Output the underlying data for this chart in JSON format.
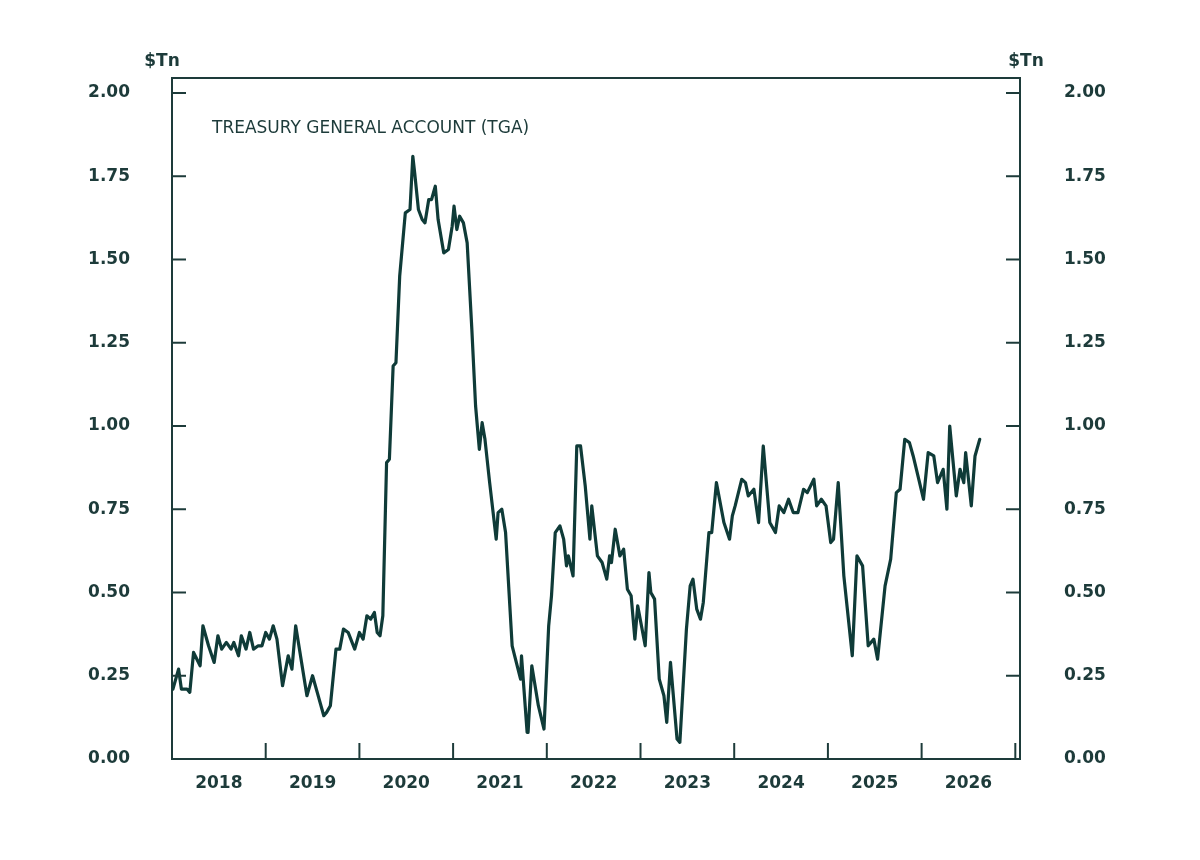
{
  "chart_data": {
    "type": "line",
    "title": "TREASURY GENERAL ACCOUNT (TGA)",
    "ylabel": "$Tn",
    "y2label": "$Tn",
    "marker": "none",
    "line_style": "solid",
    "xlim": [
      2018,
      2027.05
    ],
    "xticks": [
      {
        "value": 2018,
        "label": null
      },
      {
        "value": 2018.5,
        "label": "2018"
      },
      {
        "value": 2019,
        "label": null
      },
      {
        "value": 2019.5,
        "label": "2019"
      },
      {
        "value": 2020,
        "label": null
      },
      {
        "value": 2020.5,
        "label": "2020"
      },
      {
        "value": 2021,
        "label": null
      },
      {
        "value": 2021.5,
        "label": "2021"
      },
      {
        "value": 2022,
        "label": null
      },
      {
        "value": 2022.5,
        "label": "2022"
      },
      {
        "value": 2023,
        "label": null
      },
      {
        "value": 2023.5,
        "label": "2023"
      },
      {
        "value": 2024,
        "label": null
      },
      {
        "value": 2024.5,
        "label": "2024"
      },
      {
        "value": 2025,
        "label": null
      },
      {
        "value": 2025.5,
        "label": "2025"
      },
      {
        "value": 2026,
        "label": null
      },
      {
        "value": 2026.5,
        "label": "2026"
      },
      {
        "value": 2027,
        "label": null
      }
    ],
    "ylim": [
      0,
      2.045
    ],
    "yticks": [
      {
        "value": 0,
        "label": "0.00"
      },
      {
        "value": 0.25,
        "label": "0.25"
      },
      {
        "value": 0.5,
        "label": "0.50"
      },
      {
        "value": 0.75,
        "label": "0.75"
      },
      {
        "value": 1,
        "label": "1.00"
      },
      {
        "value": 1.25,
        "label": "1.25"
      },
      {
        "value": 1.5,
        "label": "1.50"
      },
      {
        "value": 1.75,
        "label": "1.75"
      },
      {
        "value": 2,
        "label": "2.00"
      }
    ],
    "y2lim": [
      0,
      2.045
    ],
    "y2ticks": [
      {
        "value": 0,
        "label": "0.00"
      },
      {
        "value": 0.25,
        "label": "0.25"
      },
      {
        "value": 0.5,
        "label": "0.50"
      },
      {
        "value": 0.75,
        "label": "0.75"
      },
      {
        "value": 1,
        "label": "1.00"
      },
      {
        "value": 1.25,
        "label": "1.25"
      },
      {
        "value": 1.5,
        "label": "1.50"
      },
      {
        "value": 1.75,
        "label": "1.75"
      },
      {
        "value": 2,
        "label": "2.00"
      }
    ],
    "x": [
      2018.01,
      2018.07,
      2018.1,
      2018.16,
      2018.19,
      2018.23,
      2018.3,
      2018.33,
      2018.39,
      2018.45,
      2018.49,
      2018.53,
      2018.58,
      2018.63,
      2018.66,
      2018.71,
      2018.74,
      2018.79,
      2018.83,
      2018.87,
      2018.92,
      2018.96,
      2019.0,
      2019.04,
      2019.08,
      2019.12,
      2019.18,
      2019.24,
      2019.28,
      2019.32,
      2019.44,
      2019.5,
      2019.55,
      2019.62,
      2019.65,
      2019.69,
      2019.75,
      2019.79,
      2019.83,
      2019.88,
      2019.95,
      2020.0,
      2020.04,
      2020.08,
      2020.12,
      2020.16,
      2020.19,
      2020.22,
      2020.25,
      2020.29,
      2020.32,
      2020.36,
      2020.39,
      2020.43,
      2020.49,
      2020.54,
      2020.57,
      2020.59,
      2020.63,
      2020.67,
      2020.7,
      2020.74,
      2020.77,
      2020.81,
      2020.84,
      2020.9,
      2020.95,
      2020.99,
      2021.01,
      2021.04,
      2021.07,
      2021.11,
      2021.15,
      2021.2,
      2021.24,
      2021.28,
      2021.31,
      2021.34,
      2021.39,
      2021.46,
      2021.48,
      2021.52,
      2021.56,
      2021.63,
      2021.72,
      2021.73,
      2021.79,
      2021.8,
      2021.84,
      2021.91,
      2021.97,
      2022.02,
      2022.05,
      2022.09,
      2022.14,
      2022.18,
      2022.21,
      2022.23,
      2022.28,
      2022.32,
      2022.36,
      2022.41,
      2022.46,
      2022.48,
      2022.54,
      2022.59,
      2022.64,
      2022.67,
      2022.69,
      2022.73,
      2022.78,
      2022.82,
      2022.86,
      2022.9,
      2022.94,
      2022.97,
      2023.05,
      2023.09,
      2023.11,
      2023.15,
      2023.2,
      2023.25,
      2023.28,
      2023.32,
      2023.39,
      2023.42,
      2023.49,
      2023.53,
      2023.56,
      2023.6,
      2023.64,
      2023.67,
      2023.73,
      2023.76,
      2023.81,
      2023.89,
      2023.95,
      2023.98,
      2024.01,
      2024.08,
      2024.12,
      2024.15,
      2024.21,
      2024.26,
      2024.31,
      2024.38,
      2024.44,
      2024.48,
      2024.53,
      2024.58,
      2024.63,
      2024.68,
      2024.74,
      2024.78,
      2024.85,
      2024.88,
      2024.93,
      2024.98,
      2025.03,
      2025.06,
      2025.11,
      2025.17,
      2025.26,
      2025.31,
      2025.37,
      2025.43,
      2025.49,
      2025.53,
      2025.61,
      2025.67,
      2025.73,
      2025.77,
      2025.82,
      2025.87,
      2025.91,
      2025.97,
      2026.02,
      2026.07,
      2026.13,
      2026.17,
      2026.23,
      2026.27,
      2026.3,
      2026.37,
      2026.41,
      2026.45,
      2026.47,
      2026.53,
      2026.57,
      2026.62
    ],
    "series": [
      {
        "color": "#0f3b38",
        "values": [
          0.21,
          0.27,
          0.21,
          0.21,
          0.2,
          0.32,
          0.28,
          0.4,
          0.34,
          0.29,
          0.37,
          0.33,
          0.35,
          0.33,
          0.35,
          0.31,
          0.37,
          0.33,
          0.38,
          0.33,
          0.34,
          0.34,
          0.38,
          0.36,
          0.4,
          0.36,
          0.22,
          0.31,
          0.27,
          0.4,
          0.19,
          0.25,
          0.2,
          0.13,
          0.14,
          0.16,
          0.33,
          0.33,
          0.39,
          0.38,
          0.33,
          0.38,
          0.36,
          0.43,
          0.42,
          0.44,
          0.38,
          0.37,
          0.43,
          0.89,
          0.9,
          1.18,
          1.19,
          1.45,
          1.64,
          1.65,
          1.81,
          1.76,
          1.65,
          1.62,
          1.61,
          1.68,
          1.68,
          1.72,
          1.62,
          1.52,
          1.53,
          1.6,
          1.66,
          1.59,
          1.63,
          1.61,
          1.55,
          1.29,
          1.06,
          0.93,
          1.01,
          0.96,
          0.83,
          0.66,
          0.74,
          0.75,
          0.68,
          0.34,
          0.24,
          0.31,
          0.08,
          0.08,
          0.28,
          0.16,
          0.09,
          0.4,
          0.49,
          0.68,
          0.7,
          0.66,
          0.58,
          0.61,
          0.55,
          0.94,
          0.94,
          0.82,
          0.66,
          0.76,
          0.61,
          0.59,
          0.54,
          0.61,
          0.59,
          0.69,
          0.61,
          0.63,
          0.51,
          0.49,
          0.36,
          0.46,
          0.34,
          0.56,
          0.5,
          0.48,
          0.24,
          0.19,
          0.11,
          0.29,
          0.06,
          0.05,
          0.39,
          0.52,
          0.54,
          0.45,
          0.42,
          0.47,
          0.68,
          0.68,
          0.83,
          0.71,
          0.66,
          0.73,
          0.76,
          0.84,
          0.83,
          0.79,
          0.81,
          0.71,
          0.94,
          0.71,
          0.68,
          0.76,
          0.74,
          0.78,
          0.74,
          0.74,
          0.81,
          0.8,
          0.84,
          0.76,
          0.78,
          0.76,
          0.65,
          0.66,
          0.83,
          0.55,
          0.31,
          0.61,
          0.58,
          0.34,
          0.36,
          0.3,
          0.52,
          0.6,
          0.8,
          0.81,
          0.96,
          0.95,
          0.91,
          0.84,
          0.78,
          0.92,
          0.91,
          0.83,
          0.87,
          0.75,
          1.0,
          0.79,
          0.87,
          0.83,
          0.92,
          0.76,
          0.91,
          0.96
        ]
      }
    ]
  }
}
